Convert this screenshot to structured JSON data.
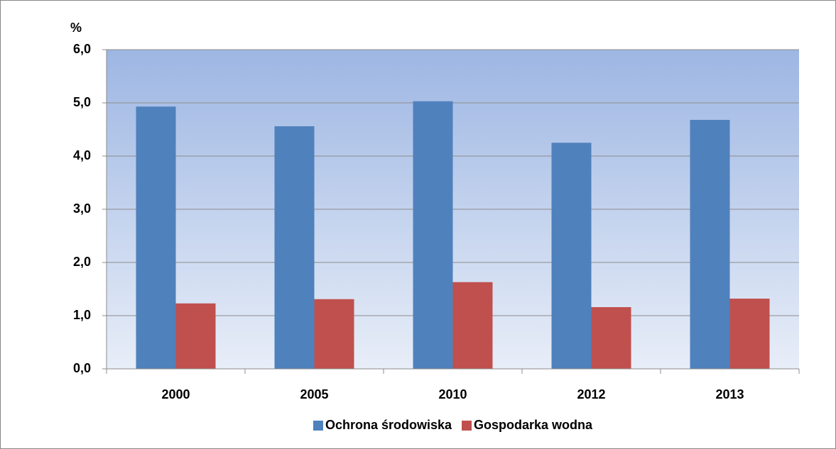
{
  "chart_data": {
    "type": "bar",
    "ylabel": "%",
    "categories": [
      "2000",
      "2005",
      "2010",
      "2012",
      "2013"
    ],
    "series": [
      {
        "name": "Ochrona środowiska",
        "color": "#4f81bd",
        "values": [
          4.93,
          4.56,
          5.03,
          4.25,
          4.68
        ]
      },
      {
        "name": "Gospodarka wodna",
        "color": "#c0504d",
        "values": [
          1.23,
          1.31,
          1.63,
          1.16,
          1.32
        ]
      }
    ],
    "ylim": [
      0,
      6
    ],
    "yticks": [
      {
        "value": 0,
        "label": "0,0"
      },
      {
        "value": 1,
        "label": "1,0"
      },
      {
        "value": 2,
        "label": "2,0"
      },
      {
        "value": 3,
        "label": "3,0"
      },
      {
        "value": 4,
        "label": "4,0"
      },
      {
        "value": 5,
        "label": "5,0"
      },
      {
        "value": 6,
        "label": "6,0"
      }
    ],
    "grid": true,
    "legend": "bottom"
  }
}
